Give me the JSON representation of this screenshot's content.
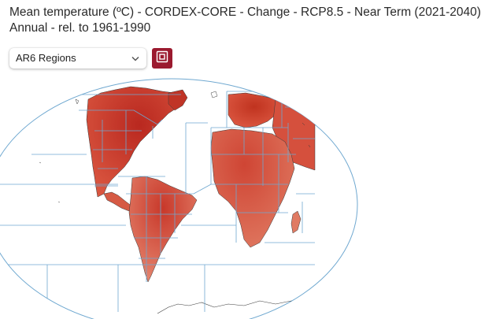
{
  "header": {
    "title_line1": "Mean temperature (ºC) - CORDEX-CORE - Change - RCP8.5 - Near Term (2021-2040)",
    "title_line2": "Annual - rel. to 1961-1990"
  },
  "controls": {
    "region_select_value": "AR6 Regions",
    "region_select_icon": "chevron-down-icon",
    "region_toggle_icon": "region-square-icon"
  },
  "colors": {
    "accent": "#9b1a2f",
    "region_border": "#6fa8d0",
    "land_warm": "#d9503c",
    "land_hot": "#b62b1f",
    "land_mild": "#e88a72"
  }
}
